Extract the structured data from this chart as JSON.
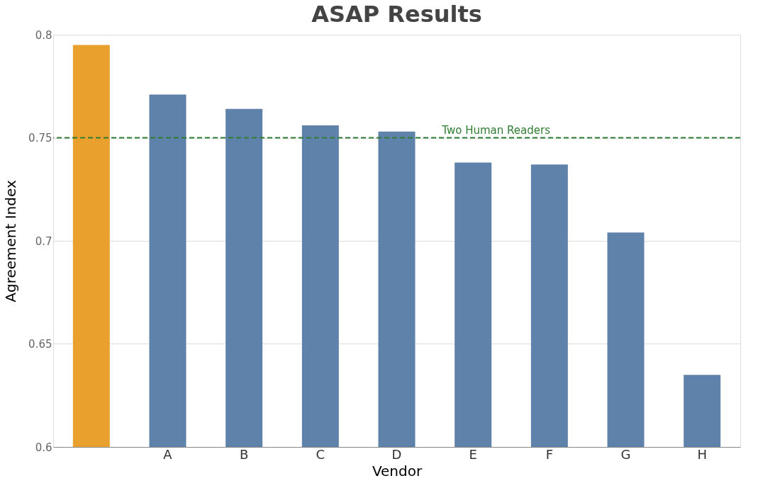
{
  "chart_data": {
    "type": "bar",
    "title": "ASAP Results",
    "xlabel": "Vendor",
    "ylabel": "Agreement Index",
    "categories": [
      null,
      "A",
      "B",
      "C",
      "D",
      "E",
      "F",
      "G",
      "H"
    ],
    "values": [
      0.795,
      0.771,
      0.764,
      0.756,
      0.753,
      0.738,
      0.737,
      0.704,
      0.635
    ],
    "colors": [
      "#e9a02c",
      "#5f82aa",
      "#5f82aa",
      "#5f82aa",
      "#5f82aa",
      "#5f82aa",
      "#5f82aa",
      "#5f82aa",
      "#5f82aa"
    ],
    "ylim": [
      0.6,
      0.8
    ],
    "yticks": [
      0.6,
      0.65,
      0.7,
      0.75,
      0.8
    ],
    "grid": "y",
    "ref_lines": [
      {
        "axis": "y",
        "value": 0.75,
        "label": "Two Human Readers",
        "color": "#2e7d32",
        "line_style": "dashed"
      }
    ]
  }
}
